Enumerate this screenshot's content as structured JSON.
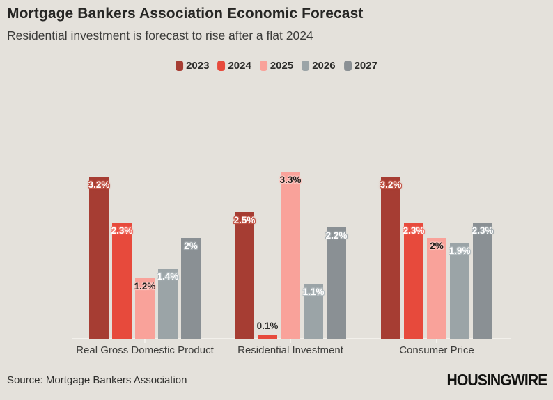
{
  "page": {
    "source": "Source: Mortgage Bankers Association",
    "logo": "HOUSINGWIRE",
    "background_color": "#E4E1DB"
  },
  "chart_data": {
    "type": "bar",
    "title": "Mortgage Bankers Association Economic Forecast",
    "subtitle": "Residential investment is forecast to rise after a flat 2024",
    "categories": [
      "Real Gross Domestic Product",
      "Residential Investment",
      "Consumer Price"
    ],
    "series": [
      {
        "name": "2023",
        "color": "#A63D33",
        "label_text_color": "#FFFFFF",
        "label_halo_color": "#C25648",
        "values": [
          3.2,
          2.5,
          3.2
        ],
        "value_labels": [
          "3.2%",
          "2.5%",
          "3.2%"
        ]
      },
      {
        "name": "2024",
        "color": "#E74A3C",
        "label_text_color": "#FFFFFF",
        "label_halo_color": "#F2766B",
        "values": [
          2.3,
          0.1,
          2.3
        ],
        "value_labels": [
          "2.3%",
          "0.1%",
          "2.3%"
        ]
      },
      {
        "name": "2025",
        "color": "#F9A29A",
        "label_text_color": "#1D1D1B",
        "label_halo_color": "#FBC6C0",
        "values": [
          1.2,
          3.3,
          2.0
        ],
        "value_labels": [
          "1.2%",
          "3.3%",
          "2%"
        ]
      },
      {
        "name": "2026",
        "color": "#9BA4A7",
        "label_text_color": "#FFFFFF",
        "label_halo_color": "#B5BEC1",
        "values": [
          1.4,
          1.1,
          1.9
        ],
        "value_labels": [
          "1.4%",
          "1.1%",
          "1.9%"
        ]
      },
      {
        "name": "2027",
        "color": "#8A9094",
        "label_text_color": "#FFFFFF",
        "label_halo_color": "#A3ABAF",
        "values": [
          2.0,
          2.2,
          2.3
        ],
        "value_labels": [
          "2%",
          "2.2%",
          "2.3%"
        ]
      }
    ],
    "ylim": [
      0,
      3.5
    ],
    "grid": false,
    "legend_position": "top-center",
    "value_label_format": "percent",
    "outside_label_text_color": "#2B2B29",
    "outside_label_halo_color": "#E4E1DB"
  }
}
